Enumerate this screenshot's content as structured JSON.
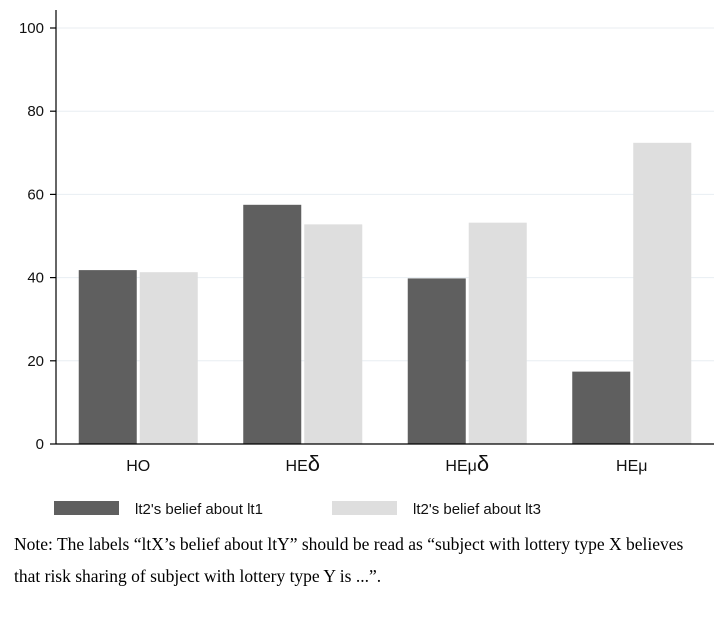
{
  "chart_data": {
    "type": "bar",
    "categories": [
      "HO",
      "HEδ",
      "HEμδ",
      "HEμ"
    ],
    "series": [
      {
        "name": "lt2's belief about lt1",
        "color": "#5f5f5f",
        "values": [
          41.8,
          57.5,
          39.8,
          17.4
        ]
      },
      {
        "name": "lt2's belief about lt3",
        "color": "#dedede",
        "values": [
          41.3,
          52.8,
          53.2,
          72.4
        ]
      }
    ],
    "ylim": [
      0,
      100
    ],
    "yticks": [
      0,
      20,
      40,
      60,
      80,
      100
    ],
    "grid": true,
    "legend_position": "bottom"
  },
  "note": "Note: The labels “ltX’s belief about ltY” should be read as “subject with lottery type X believes that risk sharing of subject with lottery type Y is ...”."
}
